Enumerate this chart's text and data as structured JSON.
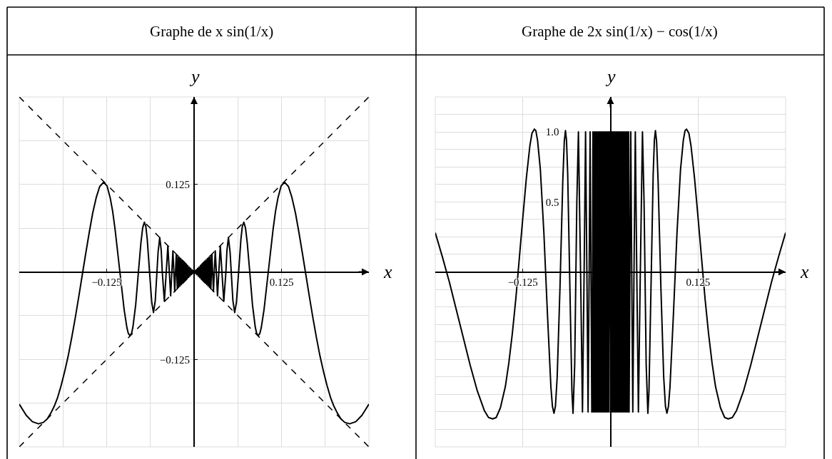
{
  "chart_data": [
    {
      "type": "line",
      "title": "Graphe de x sin(1/x)",
      "xlabel": "x",
      "ylabel": "y",
      "xlim": [
        -0.25,
        0.25
      ],
      "ylim": [
        -0.25,
        0.25
      ],
      "xticks": [
        {
          "value": -0.1875,
          "label": null
        },
        {
          "value": -0.125,
          "label": "−0.125"
        },
        {
          "value": -0.0625,
          "label": null
        },
        {
          "value": 0,
          "label": null
        },
        {
          "value": 0.0625,
          "label": null
        },
        0.125,
        {
          "value": 0.1875,
          "label": null
        }
      ],
      "yticks": [
        {
          "value": -0.1875,
          "label": null
        },
        {
          "value": -0.125,
          "label": "−0.125"
        },
        {
          "value": -0.0625,
          "label": null
        },
        {
          "value": 0,
          "label": null
        },
        {
          "value": 0.0625,
          "label": null
        },
        0.125,
        {
          "value": 0.1875,
          "label": null
        }
      ],
      "grid": true,
      "series": [
        {
          "color": "#000000",
          "line_style": "solid",
          "x": [
            -0.25,
            -0.24,
            -0.2313,
            -0.2226,
            -0.2155,
            -0.21,
            -0.205,
            -0.2,
            -0.195,
            -0.19,
            -0.185,
            -0.18,
            -0.175,
            -0.17,
            -0.165,
            -0.1592,
            -0.155,
            -0.15,
            -0.145,
            -0.14,
            -0.135,
            -0.1294,
            -0.1245,
            -0.12,
            -0.1165,
            -0.113,
            -0.1061,
            -0.1,
            -0.096,
            -0.094,
            -0.0917,
            -0.0895,
            -0.0875,
            -0.0835,
            -0.0796,
            -0.076,
            -0.0735,
            -0.0711,
            -0.069,
            -0.067,
            -0.0637,
            -0.0605,
            -0.058,
            -0.0555,
            -0.0531,
            -0.0515,
            -0.0491,
            -0.047,
            -0.0455,
            -0.0425,
            -0.0398,
            -0.0375,
            -0.0354,
            -0.0335,
            -0.0318,
            -0.0303,
            -0.0289,
            -0.0277,
            -0.0265,
            -0.0255,
            -0.024,
            -0.023,
            -0.022,
            -0.021,
            -0.02,
            -0.019,
            -0.018,
            -0.017,
            -0.016,
            -0.015,
            -0.014,
            -0.013,
            -0.012,
            -0.011,
            -0.01,
            -0.009,
            -0.008,
            -0.007,
            -0.006,
            -0.005,
            -0.004,
            -0.003,
            -0.002,
            -0.001,
            0,
            0.001,
            0.002,
            0.003,
            0.004,
            0.005,
            0.006,
            0.007,
            0.008,
            0.009,
            0.01,
            0.011,
            0.012,
            0.013,
            0.014,
            0.015,
            0.016,
            0.017,
            0.018,
            0.019,
            0.02,
            0.021,
            0.022,
            0.023,
            0.024,
            0.0255,
            0.0265,
            0.0277,
            0.0289,
            0.0303,
            0.0318,
            0.0335,
            0.0354,
            0.0375,
            0.0398,
            0.0425,
            0.0455,
            0.047,
            0.0491,
            0.0515,
            0.0531,
            0.0555,
            0.058,
            0.0605,
            0.0637,
            0.067,
            0.069,
            0.0711,
            0.0735,
            0.076,
            0.0796,
            0.0835,
            0.0875,
            0.0895,
            0.0917,
            0.094,
            0.096,
            0.1,
            0.1061,
            0.113,
            0.1165,
            0.12,
            0.1245,
            0.1294,
            0.135,
            0.14,
            0.145,
            0.15,
            0.155,
            0.1592,
            0.165,
            0.17,
            0.175,
            0.18,
            0.185,
            0.19,
            0.195,
            0.2,
            0.205,
            0.21,
            0.2155,
            0.2226,
            0.2313,
            0.24,
            0.25
          ],
          "values": [
            -0.189,
            -0.205,
            -0.214,
            -0.217,
            -0.215,
            -0.21,
            -0.202,
            -0.192,
            -0.179,
            -0.162,
            -0.142,
            -0.12,
            -0.094,
            -0.066,
            -0.036,
            0,
            0.026,
            0.056,
            0.084,
            0.106,
            0.122,
            0.128,
            0.123,
            0.106,
            0.087,
            0.061,
            0,
            -0.054,
            -0.08,
            -0.088,
            -0.091,
            -0.088,
            -0.079,
            -0.047,
            0,
            0.042,
            0.063,
            0.071,
            0.065,
            0.047,
            0,
            -0.044,
            -0.058,
            -0.041,
            0,
            0.028,
            0.049,
            0.031,
            0,
            -0.042,
            0,
            0.037,
            0,
            -0.034,
            0,
            0.03,
            0,
            -0.028,
            0,
            0.025,
            -0.024,
            0.023,
            -0.022,
            0.021,
            -0.02,
            0.019,
            -0.018,
            0.017,
            -0.016,
            0.015,
            -0.014,
            0.013,
            -0.012,
            0.011,
            -0.01,
            0.009,
            -0.008,
            0.007,
            -0.006,
            0.005,
            -0.004,
            0.003,
            -0.002,
            0.001,
            0,
            0.001,
            -0.002,
            0.003,
            -0.004,
            0.005,
            -0.006,
            0.007,
            -0.008,
            0.009,
            -0.01,
            0.011,
            -0.012,
            0.013,
            -0.014,
            0.015,
            -0.016,
            0.017,
            -0.018,
            0.019,
            -0.02,
            0.021,
            -0.022,
            0.023,
            -0.024,
            0.025,
            0,
            -0.028,
            0,
            0.03,
            0,
            -0.034,
            0,
            0.037,
            0,
            -0.042,
            0,
            0.031,
            0.049,
            0.028,
            0,
            -0.041,
            -0.058,
            -0.044,
            0,
            0.047,
            0.065,
            0.071,
            0.063,
            0.042,
            0,
            -0.047,
            -0.079,
            -0.088,
            -0.091,
            -0.088,
            -0.08,
            -0.054,
            0,
            0.061,
            0.087,
            0.106,
            0.123,
            0.128,
            0.122,
            0.106,
            0.084,
            0.056,
            0.026,
            0,
            -0.036,
            -0.066,
            -0.094,
            -0.12,
            -0.142,
            -0.162,
            -0.179,
            -0.192,
            -0.202,
            -0.21,
            -0.215,
            -0.217,
            -0.214,
            -0.205,
            -0.189
          ]
        },
        {
          "color": "#000000",
          "line_style": "dashed",
          "x": [
            -0.25,
            0.25
          ],
          "values": [
            -0.25,
            0.25
          ]
        },
        {
          "color": "#000000",
          "line_style": "dashed",
          "x": [
            -0.25,
            0.25
          ],
          "values": [
            0.25,
            -0.25
          ]
        }
      ]
    },
    {
      "type": "line",
      "title": "Graphe de 2x sin(1/x) − cos(1/x)",
      "xlabel": "x",
      "ylabel": "y",
      "xlim": [
        -0.25,
        0.25
      ],
      "ylim": [
        -1.25,
        1.25
      ],
      "xticks": [
        {
          "value": -0.125,
          "label": "−0.125"
        },
        {
          "value": 0,
          "label": null
        },
        0.125
      ],
      "yticks": [
        {
          "value": -1.125,
          "label": null
        },
        {
          "value": -1,
          "label": null
        },
        {
          "value": -0.875,
          "label": null
        },
        {
          "value": -0.75,
          "label": null
        },
        {
          "value": -0.625,
          "label": null
        },
        {
          "value": -0.5,
          "label": null
        },
        {
          "value": -0.375,
          "label": null
        },
        {
          "value": -0.25,
          "label": null
        },
        {
          "value": -0.125,
          "label": null
        },
        {
          "value": 0,
          "label": null
        },
        {
          "value": 0.125,
          "label": null
        },
        {
          "value": 0.25,
          "label": null
        },
        {
          "value": 0.375,
          "label": null
        },
        0.5,
        {
          "value": 0.625,
          "label": null
        },
        {
          "value": 0.75,
          "label": null
        },
        {
          "value": 0.875,
          "label": null
        },
        {
          "value": 1,
          "label": "1.0"
        },
        {
          "value": 1.125,
          "label": null
        }
      ],
      "grid": true,
      "series": [
        {
          "color": "#000000",
          "line_style": "solid",
          "x": [
            -0.25,
            -0.24,
            -0.23,
            -0.22,
            -0.21,
            -0.2,
            -0.19,
            -0.18,
            -0.174,
            -0.168,
            -0.163,
            -0.157,
            -0.15,
            -0.145,
            -0.14,
            -0.135,
            -0.13,
            -0.125,
            -0.12,
            -0.115,
            -0.112,
            -0.1086,
            -0.1065,
            -0.104,
            -0.1,
            -0.095,
            -0.09,
            -0.085,
            -0.0828,
            -0.0806,
            -0.0785,
            -0.076,
            -0.072,
            -0.068,
            -0.0659,
            -0.0642,
            -0.0627,
            -0.061,
            -0.058,
            -0.055,
            -0.0534,
            -0.051,
            -0.048,
            -0.0457,
            -0.0424,
            -0.0399,
            -0.0374,
            -0.0355,
            -0.0335,
            -0.0319,
            -0.0303,
            -0.029,
            -0.0277,
            -0.0266,
            -0.026,
            -0.025,
            -0.024,
            -0.023,
            -0.022,
            -0.021,
            -0.02,
            -0.019,
            -0.018,
            -0.017,
            -0.016,
            -0.015,
            -0.014,
            -0.013,
            -0.012,
            -0.011,
            -0.01,
            -0.009,
            -0.008,
            -0.007,
            -0.006,
            -0.005,
            -0.004,
            -0.003,
            -0.002,
            -0.001,
            0.001,
            0.002,
            0.003,
            0.004,
            0.005,
            0.006,
            0.007,
            0.008,
            0.009,
            0.01,
            0.011,
            0.012,
            0.013,
            0.014,
            0.015,
            0.016,
            0.017,
            0.018,
            0.019,
            0.02,
            0.021,
            0.022,
            0.023,
            0.024,
            0.025,
            0.026,
            0.0266,
            0.0277,
            0.029,
            0.0303,
            0.0319,
            0.0335,
            0.0355,
            0.0374,
            0.0399,
            0.0424,
            0.0457,
            0.048,
            0.051,
            0.0534,
            0.055,
            0.058,
            0.061,
            0.0627,
            0.0642,
            0.0659,
            0.068,
            0.072,
            0.076,
            0.0785,
            0.0806,
            0.0828,
            0.085,
            0.09,
            0.095,
            0.1,
            0.104,
            0.1065,
            0.1086,
            0.112,
            0.115,
            0.12,
            0.125,
            0.13,
            0.135,
            0.14,
            0.145,
            0.15,
            0.157,
            0.163,
            0.168,
            0.174,
            0.18,
            0.19,
            0.2,
            0.21,
            0.22,
            0.23,
            0.24,
            0.25
          ],
          "values": [
            0.28,
            0.11,
            -0.07,
            -0.27,
            -0.47,
            -0.67,
            -0.85,
            -0.99,
            -1.04,
            -1.05,
            -1.04,
            -0.97,
            -0.82,
            -0.65,
            -0.44,
            -0.19,
            0.1,
            0.39,
            0.67,
            0.9,
            0.99,
            1.02,
            1.01,
            0.94,
            0.73,
            0.28,
            -0.29,
            -0.82,
            -0.96,
            -1.01,
            -0.96,
            -0.75,
            -0.11,
            0.65,
            0.93,
            1.01,
            0.94,
            0.7,
            -0.08,
            -0.85,
            -1.01,
            -0.66,
            0.49,
            1.0,
            -0.08,
            -1.0,
            0.07,
            1.0,
            -0.07,
            -1.0,
            0.06,
            1.0,
            -0.06,
            -1.0,
            -1,
            1,
            -1,
            1,
            -1,
            1,
            -1,
            1,
            -1,
            1,
            -1,
            1,
            -1,
            1,
            -1,
            1,
            -1,
            1,
            -1,
            1,
            -1,
            1,
            -1,
            1,
            -1,
            1,
            -1,
            1,
            -1,
            1,
            -1,
            1,
            -1,
            1,
            -1,
            1,
            -1,
            1,
            -1,
            1,
            -1,
            1,
            -1,
            1,
            -1,
            1,
            -1,
            1,
            -1,
            1,
            -1,
            1,
            -1.0,
            -0.06,
            1.0,
            0.06,
            -1.0,
            -0.07,
            1.0,
            0.07,
            -1.0,
            -0.08,
            1.0,
            0.49,
            -0.66,
            -1.01,
            -0.85,
            -0.08,
            0.7,
            0.94,
            1.01,
            0.93,
            0.65,
            -0.11,
            -0.75,
            -0.96,
            -1.01,
            -0.96,
            -0.82,
            -0.29,
            0.28,
            0.73,
            0.94,
            1.01,
            1.02,
            0.99,
            0.9,
            0.67,
            0.39,
            0.1,
            -0.19,
            -0.44,
            -0.65,
            -0.82,
            -0.97,
            -1.04,
            -1.05,
            -1.04,
            -0.99,
            -0.85,
            -0.67,
            -0.47,
            -0.27,
            -0.07,
            0.11,
            0.28
          ]
        }
      ]
    }
  ]
}
